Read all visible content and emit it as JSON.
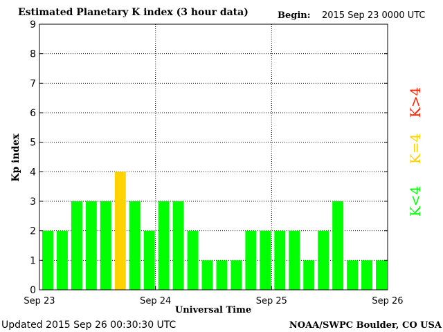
{
  "chart_data": {
    "type": "bar",
    "title": "Estimated Planetary K index (3 hour data)",
    "begin_label": "Begin:",
    "begin_value": "2015 Sep 23 0000 UTC",
    "ylabel": "Kp index",
    "xlabel": "Universal Time",
    "ylim": [
      0,
      9
    ],
    "y_ticks": [
      "0",
      "1",
      "2",
      "3",
      "4",
      "5",
      "6",
      "7",
      "8",
      "9"
    ],
    "x_tick_labels": [
      "Sep 23",
      "Sep 24",
      "Sep 25",
      "Sep 26"
    ],
    "grid": "dotted, at each integer Kp and each day boundary",
    "values": [
      2,
      2,
      3,
      3,
      3,
      4,
      3,
      2,
      3,
      3,
      2,
      1,
      1,
      1,
      2,
      2,
      2,
      2,
      1,
      2,
      3,
      1,
      1,
      1
    ],
    "colors": {
      "low": "#00ff00",
      "equal4": "#ffd200",
      "high": "#ff2000",
      "axis": "#000000",
      "grid": "#000000"
    },
    "legend": {
      "high": "K>4",
      "equal4": "K=4",
      "low": "K<4"
    }
  },
  "footer": {
    "updated": "Updated 2015 Sep 26 00:30:30 UTC",
    "source": "NOAA/SWPC Boulder, CO USA"
  }
}
